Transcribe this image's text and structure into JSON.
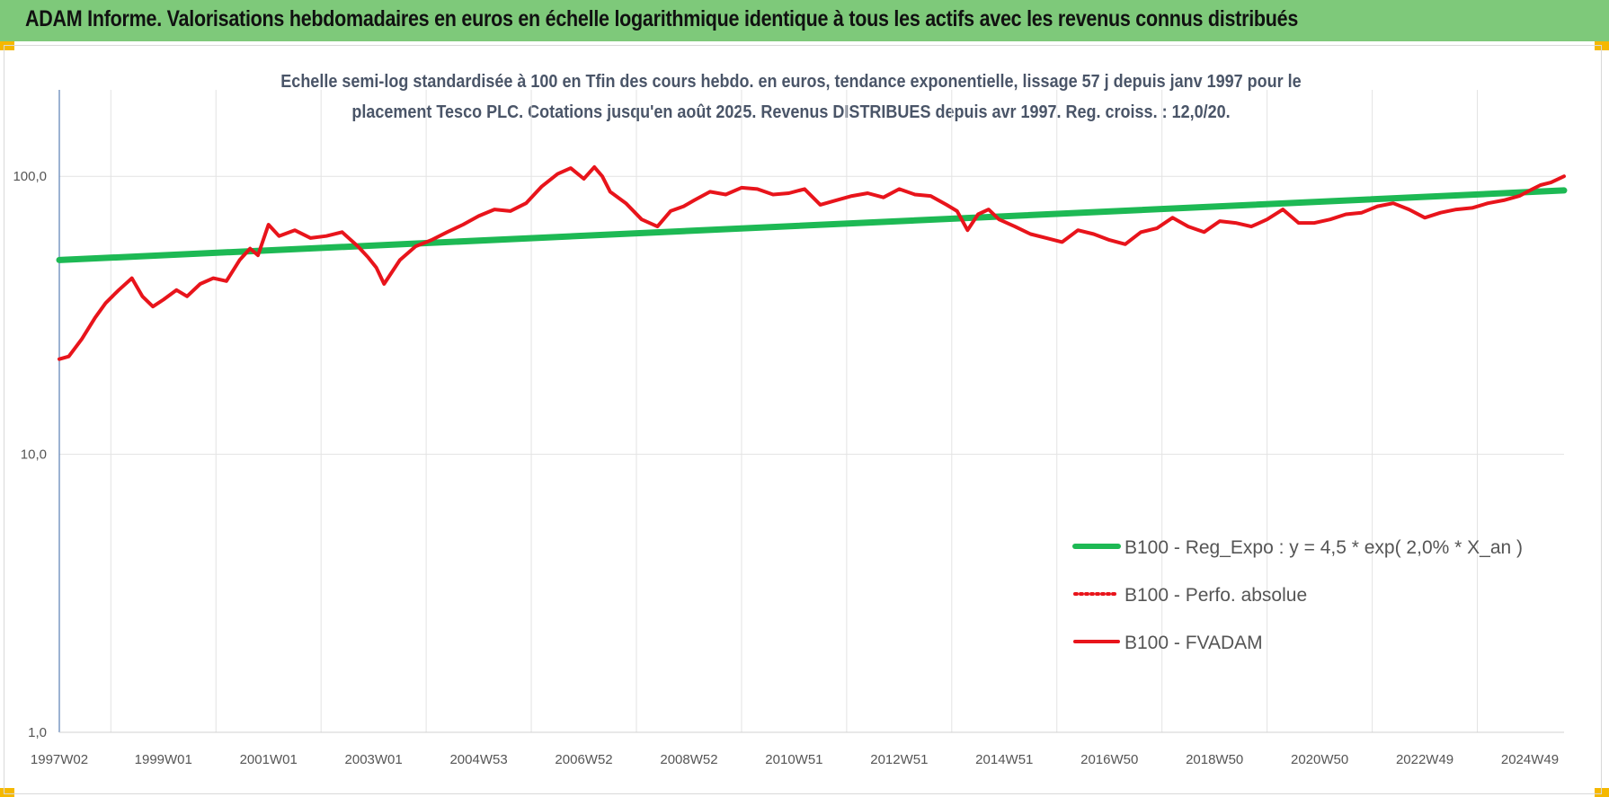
{
  "header": {
    "title": "ADAM Informe. Valorisations hebdomadaires en euros en échelle logarithmique identique à tous les actifs avec les revenus connus distribués"
  },
  "chart_data": {
    "type": "line",
    "title": "",
    "subtitle_lines": [
      "Echelle semi-log standardisée à 100 en Tfin des cours hebdo. en euros, tendance exponentielle, lissage 57 j depuis janv 1997 pour le",
      "placement Tesco PLC. Cotations jusqu'en août 2025. Revenus DISTRIBUES depuis avr 1997. Reg. croiss. : 12,0/20."
    ],
    "xlabel": "",
    "ylabel": "",
    "y_scale": "log",
    "ylim": [
      1,
      190
    ],
    "y_ticks": [
      {
        "value": 1,
        "label": "1,0"
      },
      {
        "value": 10,
        "label": "10,0"
      },
      {
        "value": 100,
        "label": "100,0"
      }
    ],
    "xlim": [
      1997.02,
      2025.65
    ],
    "x_ticks": [
      {
        "value": 1997.02,
        "label": "1997W02"
      },
      {
        "value": 1999.0,
        "label": "1999W01"
      },
      {
        "value": 2001.0,
        "label": "2001W01"
      },
      {
        "value": 2003.0,
        "label": "2003W01"
      },
      {
        "value": 2005.0,
        "label": "2004W53"
      },
      {
        "value": 2007.0,
        "label": "2006W52"
      },
      {
        "value": 2009.0,
        "label": "2008W52"
      },
      {
        "value": 2011.0,
        "label": "2010W51"
      },
      {
        "value": 2013.0,
        "label": "2012W51"
      },
      {
        "value": 2015.0,
        "label": "2014W51"
      },
      {
        "value": 2017.0,
        "label": "2016W50"
      },
      {
        "value": 2019.0,
        "label": "2018W50"
      },
      {
        "value": 2021.0,
        "label": "2020W50"
      },
      {
        "value": 2023.0,
        "label": "2022W49"
      },
      {
        "value": 2025.0,
        "label": "2024W49"
      }
    ],
    "x_minor_gridlines": [
      1998,
      2000,
      2002,
      2004,
      2006,
      2008,
      2010,
      2012,
      2014,
      2016,
      2018,
      2020,
      2022,
      2024
    ],
    "grid": true,
    "legend_position": "bottom-right",
    "series": [
      {
        "name": "B100 - Reg_Expo : y = 4,5 * exp( 2,0% *  X_an )",
        "color": "#1db954",
        "style": "solid",
        "x": [
          1997.02,
          2025.65
        ],
        "y": [
          50,
          89
        ]
      },
      {
        "name": "B100 - Perfo. absolue",
        "color": "#e8141b",
        "style": "dotted",
        "x": [],
        "y": []
      },
      {
        "name": "B100 - FVADAM",
        "color": "#e8141b",
        "style": "solid",
        "x": [
          1997.02,
          1997.2,
          1997.45,
          1997.7,
          1997.9,
          1998.15,
          1998.4,
          1998.6,
          1998.8,
          1999.0,
          1999.25,
          1999.45,
          1999.7,
          1999.95,
          2000.2,
          2000.45,
          2000.65,
          2000.8,
          2001.0,
          2001.2,
          2001.5,
          2001.8,
          2002.1,
          2002.4,
          2002.7,
          2002.9,
          2003.05,
          2003.2,
          2003.5,
          2003.8,
          2004.1,
          2004.4,
          2004.7,
          2005.0,
          2005.3,
          2005.6,
          2005.9,
          2006.2,
          2006.5,
          2006.75,
          2007.0,
          2007.2,
          2007.35,
          2007.5,
          2007.8,
          2008.1,
          2008.4,
          2008.65,
          2008.9,
          2009.1,
          2009.4,
          2009.7,
          2010.0,
          2010.3,
          2010.6,
          2010.9,
          2011.2,
          2011.5,
          2011.8,
          2012.1,
          2012.4,
          2012.7,
          2013.0,
          2013.3,
          2013.6,
          2013.9,
          2014.1,
          2014.3,
          2014.5,
          2014.7,
          2014.9,
          2015.2,
          2015.5,
          2015.8,
          2016.1,
          2016.4,
          2016.7,
          2017.0,
          2017.3,
          2017.6,
          2017.9,
          2018.2,
          2018.5,
          2018.8,
          2019.1,
          2019.4,
          2019.7,
          2020.0,
          2020.3,
          2020.6,
          2020.9,
          2021.2,
          2021.5,
          2021.8,
          2022.1,
          2022.4,
          2022.7,
          2023.0,
          2023.3,
          2023.6,
          2023.9,
          2024.2,
          2024.5,
          2024.8,
          2025.0,
          2025.2,
          2025.4,
          2025.65
        ],
        "y": [
          22,
          22.5,
          26,
          31,
          35,
          39,
          43,
          37,
          34,
          36,
          39,
          37,
          41,
          43,
          42,
          50,
          55,
          52,
          67,
          61,
          64,
          60,
          61,
          63,
          56,
          51,
          47,
          41,
          50,
          56,
          59,
          63,
          67,
          72,
          76,
          75,
          80,
          92,
          102,
          107,
          98,
          108,
          100,
          88,
          80,
          70,
          66,
          75,
          78,
          82,
          88,
          86,
          91,
          90,
          86,
          87,
          90,
          79,
          82,
          85,
          87,
          84,
          90,
          86,
          85,
          79,
          75,
          64,
          73,
          76,
          70,
          66,
          62,
          60,
          58,
          64,
          62,
          59,
          57,
          63,
          65,
          71,
          66,
          63,
          69,
          68,
          66,
          70,
          76,
          68,
          68,
          70,
          73,
          74,
          78,
          80,
          76,
          71,
          74,
          76,
          77,
          80,
          82,
          85,
          89,
          93,
          95,
          100
        ]
      }
    ]
  }
}
